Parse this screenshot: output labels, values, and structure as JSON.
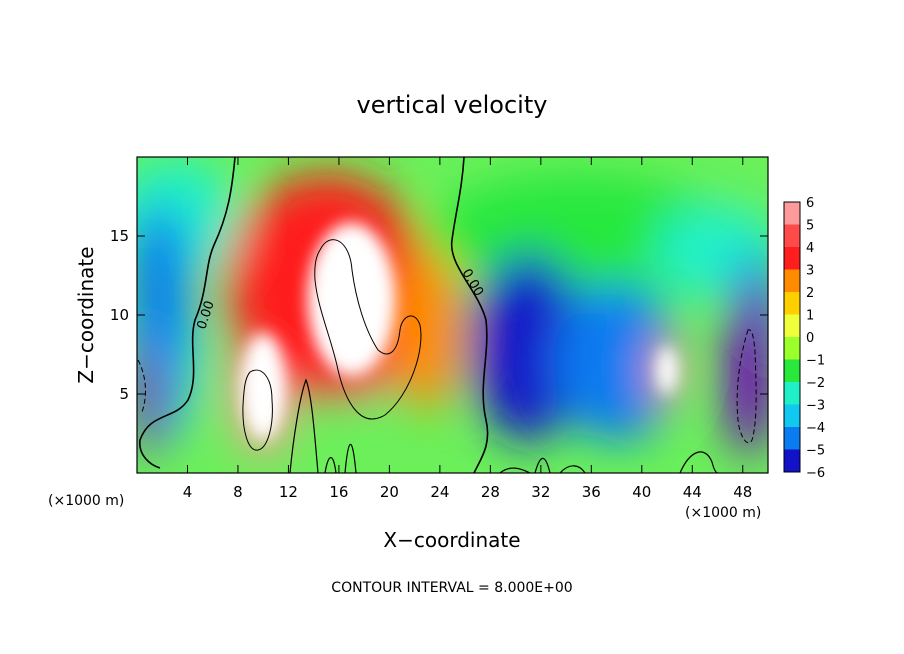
{
  "chart_data": {
    "type": "heatmap",
    "title": "vertical velocity",
    "xlabel": "X−coordinate",
    "ylabel": "Z−coordinate",
    "x_unit_left": "(×1000 m)",
    "x_unit_right": "(×1000 m)",
    "xlim": [
      0,
      50
    ],
    "ylim": [
      0,
      20
    ],
    "x_ticks": [
      4,
      8,
      12,
      16,
      20,
      24,
      28,
      32,
      36,
      40,
      44,
      48
    ],
    "y_ticks": [
      5,
      10,
      15
    ],
    "footer": "CONTOUR INTERVAL = 8.000E+00",
    "contour_labels": [
      "0.00",
      "0.00"
    ],
    "colorbar": {
      "levels": [
        6,
        5,
        4,
        3,
        2,
        1,
        0,
        -1,
        -2,
        -3,
        -4,
        -5,
        -6
      ],
      "level_labels": [
        "6",
        "5",
        "4",
        "3",
        "2",
        "1",
        "0",
        "−1",
        "−2",
        "−3",
        "−4",
        "−5",
        "−6"
      ],
      "colors": [
        "#ff9a9a",
        "#ff4a4a",
        "#ff1e1e",
        "#ff8c00",
        "#ffd000",
        "#f0ff3c",
        "#9aff2a",
        "#28e83c",
        "#20f0c8",
        "#10c8f0",
        "#0a7cf0",
        "#1212c8",
        "#7000b8"
      ]
    },
    "features": [
      {
        "x": 1.0,
        "z": 6,
        "value": -6,
        "rx": 1.5,
        "rz": 5
      },
      {
        "x": 1.8,
        "z": 12,
        "value": -4,
        "rx": 2.5,
        "rz": 5
      },
      {
        "x": 10,
        "z": 5.5,
        "value": 6,
        "rx": 2.5,
        "rz": 4.5
      },
      {
        "x": 17,
        "z": 11,
        "value": 6,
        "rx": 5,
        "rz": 6.5
      },
      {
        "x": 15,
        "z": 12,
        "value": 4,
        "rx": 8,
        "rz": 7
      },
      {
        "x": 23,
        "z": 9,
        "value": 3,
        "rx": 3,
        "rz": 5
      },
      {
        "x": 31,
        "z": 8,
        "value": -5,
        "rx": 4.5,
        "rz": 6
      },
      {
        "x": 38,
        "z": 7,
        "value": -4,
        "rx": 5,
        "rz": 5
      },
      {
        "x": 42,
        "z": 6.5,
        "value": 6,
        "rx": 1.2,
        "rz": 2
      },
      {
        "x": 48.5,
        "z": 6.5,
        "value": -6,
        "rx": 2,
        "rz": 5.5
      }
    ]
  }
}
